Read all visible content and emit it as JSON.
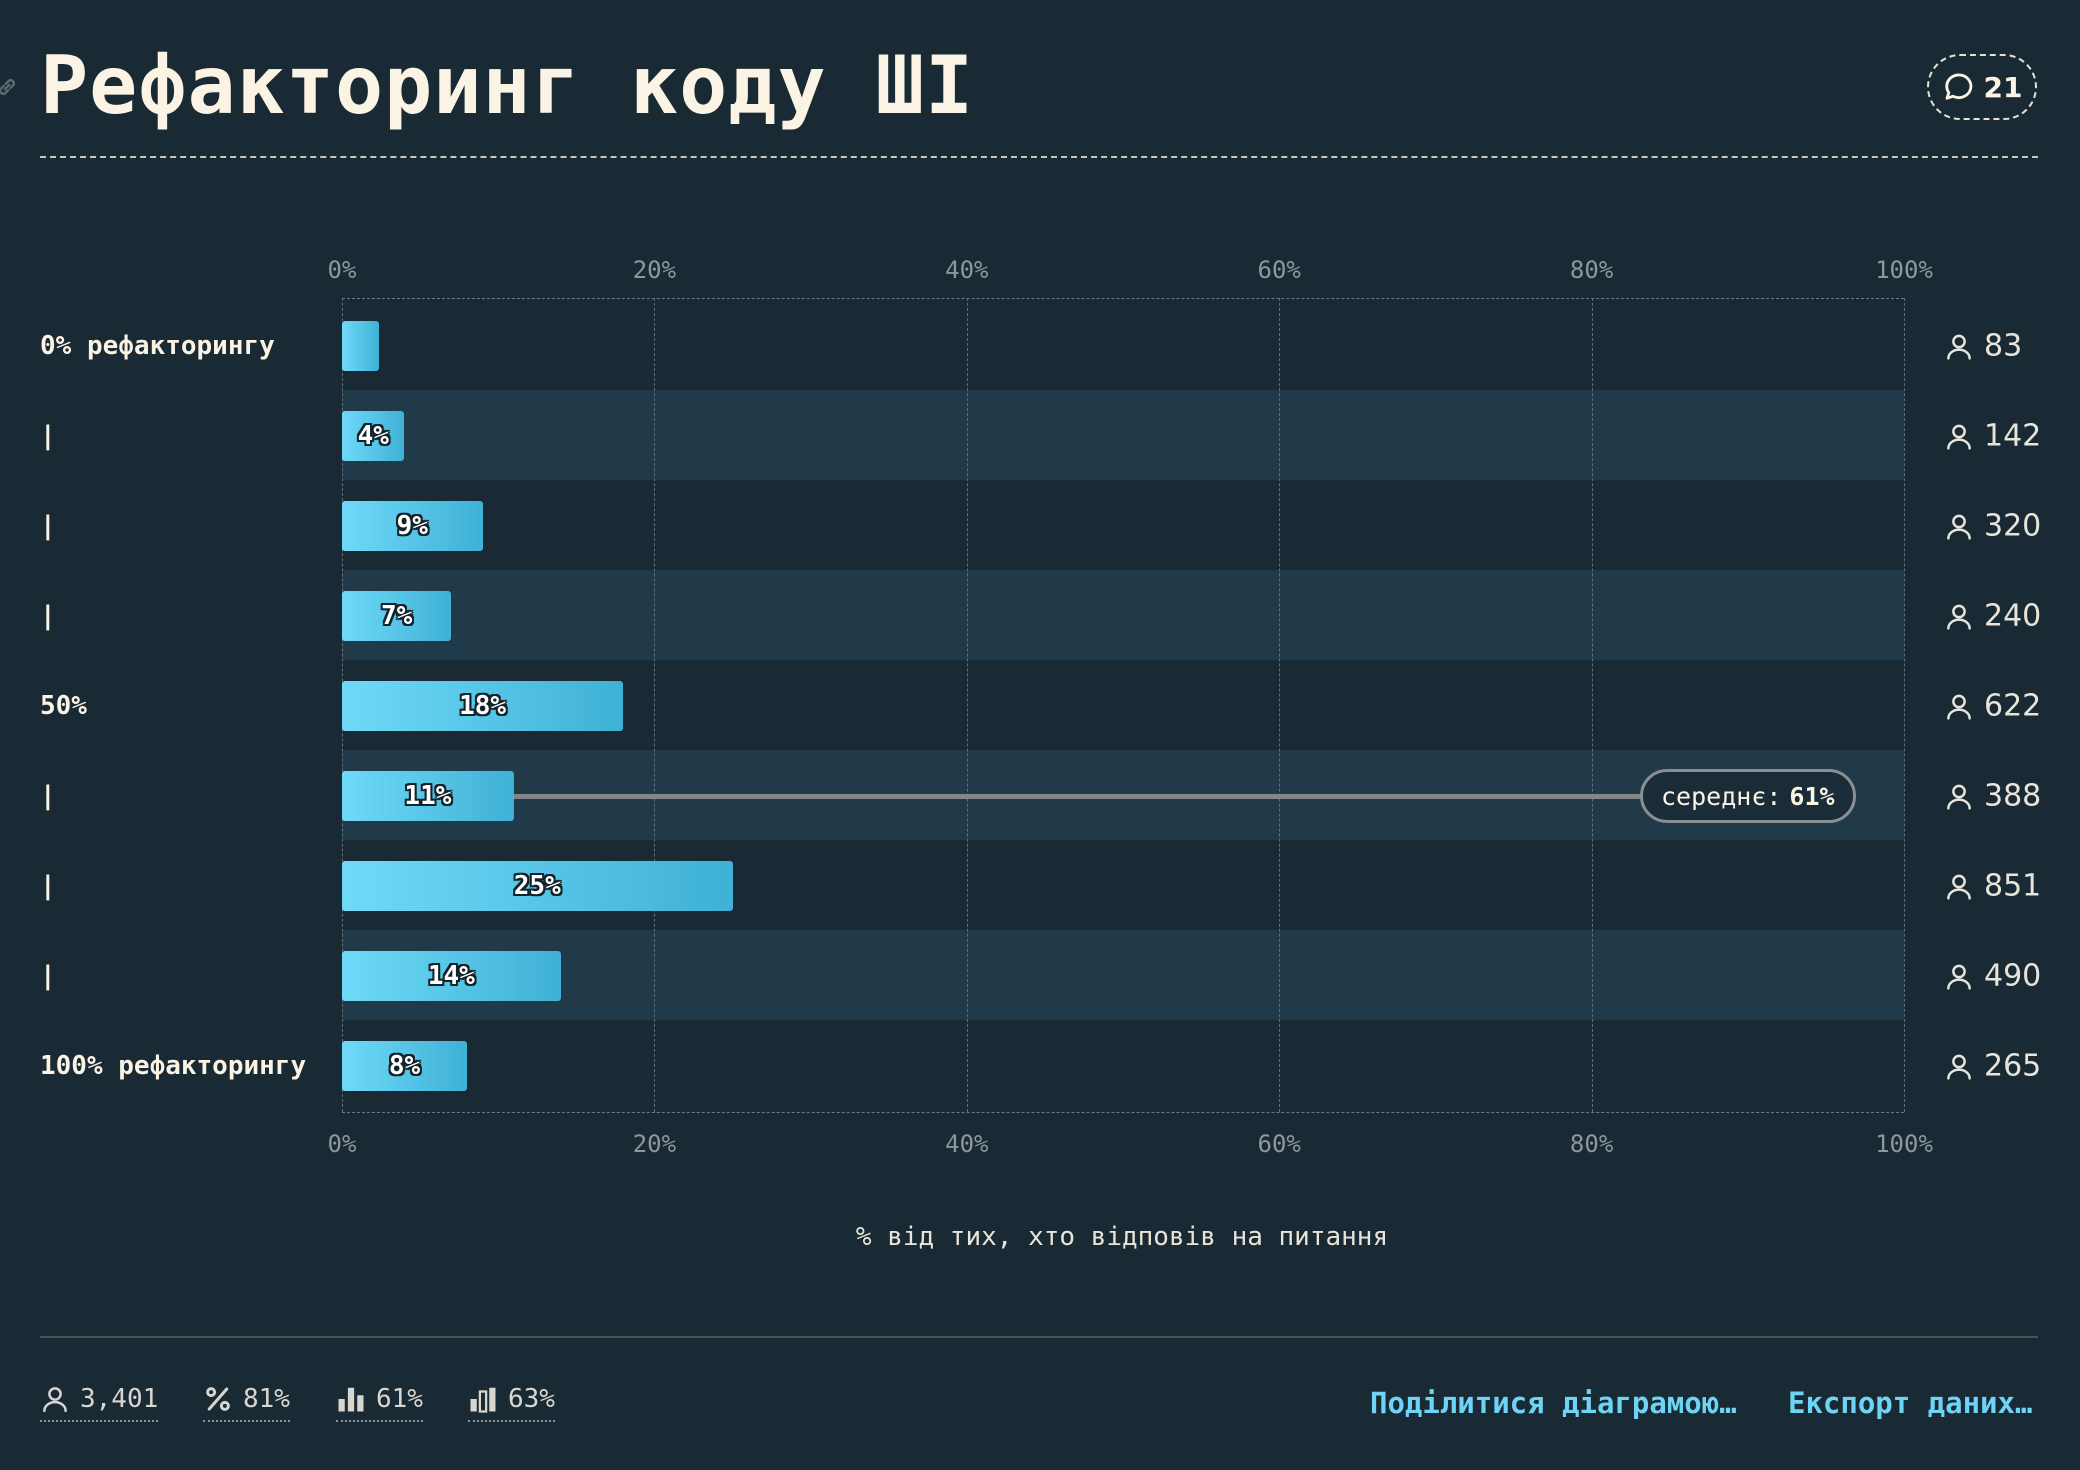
{
  "header": {
    "title": "Рефакторинг коду ШІ",
    "comment_count": "21"
  },
  "chart_data": {
    "type": "bar",
    "orientation": "horizontal",
    "categories": [
      "0% рефакторингу",
      "|",
      "|",
      "|",
      "50%",
      "|",
      "|",
      "|",
      "100% рефакторингу"
    ],
    "values": [
      2.4,
      4,
      9,
      7,
      18,
      11,
      25,
      14,
      8
    ],
    "value_labels": [
      "",
      "4%",
      "9%",
      "7%",
      "18%",
      "11%",
      "25%",
      "14%",
      "8%"
    ],
    "respondents": [
      "83",
      "142",
      "320",
      "240",
      "622",
      "388",
      "851",
      "490",
      "265"
    ],
    "xlim": [
      0,
      100
    ],
    "x_ticks": [
      "0%",
      "20%",
      "40%",
      "60%",
      "80%",
      "100%"
    ],
    "xlabel": "% від тих, хто відповів на питання",
    "mean": {
      "label": "середнє:",
      "value": "61%",
      "row": 5,
      "marker_position": 61
    },
    "grid": true
  },
  "footer": {
    "stats": [
      {
        "icon": "person-icon",
        "value": "3,401"
      },
      {
        "icon": "percent-icon",
        "value": "81%"
      },
      {
        "icon": "bar-chart-icon",
        "value": "61%"
      },
      {
        "icon": "bar-chart-alt-icon",
        "value": "63%"
      }
    ],
    "share_label": "Поділитися діаграмою…",
    "export_label": "Експорт даних…"
  },
  "colors": {
    "background": "#192a35",
    "band": "#213a4a",
    "bar_start": "#6fdaf8",
    "bar_end": "#3fb1d6",
    "accent": "#6ed4f5",
    "title": "#fbf3e4"
  }
}
